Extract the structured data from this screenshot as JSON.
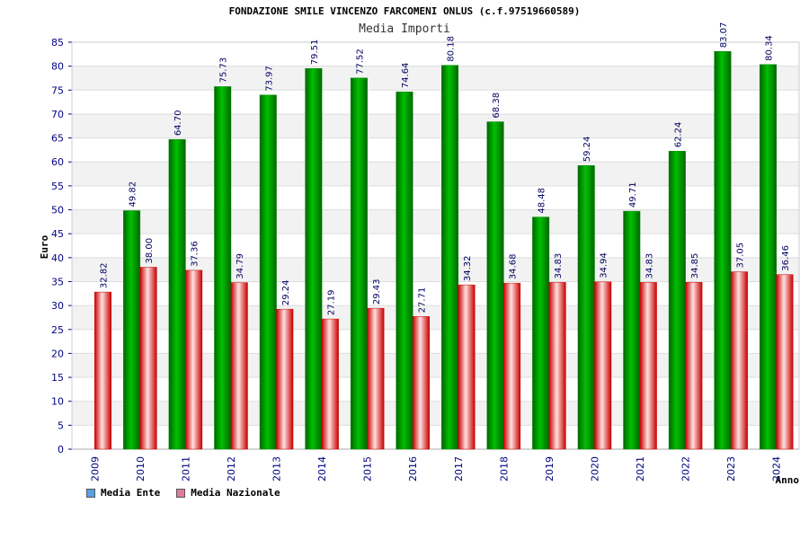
{
  "header": {
    "title": "FONDAZIONE SMILE VINCENZO FARCOMENI ONLUS (c.f.97519660589)",
    "subtitle": "Media Importi"
  },
  "legend": {
    "items": [
      {
        "label": "Media Ente",
        "color": "#5aa0e6"
      },
      {
        "label": "Media Nazionale",
        "color": "#e07aa0"
      }
    ]
  },
  "colors": {
    "ente_bar": "#00c000",
    "ente_bar_dark": "#006600",
    "nazionale_bar": "#ff3c3c",
    "nazionale_bar_dark": "#c80000",
    "axis_text": "#000080",
    "band": "#f2f2f2"
  },
  "chart_data": {
    "type": "bar",
    "title": "FONDAZIONE SMILE VINCENZO FARCOMENI ONLUS (c.f.97519660589)",
    "subtitle": "Media Importi",
    "xlabel": "Anno",
    "ylabel": "Euro",
    "ylim": [
      0,
      85
    ],
    "yticks": [
      0,
      5,
      10,
      15,
      20,
      25,
      30,
      35,
      40,
      45,
      50,
      55,
      60,
      65,
      70,
      75,
      80,
      85
    ],
    "grid": true,
    "legend_position": "bottom-left",
    "categories": [
      "2009",
      "2010",
      "2011",
      "2012",
      "2013",
      "2014",
      "2015",
      "2016",
      "2017",
      "2018",
      "2019",
      "2020",
      "2021",
      "2022",
      "2023",
      "2024"
    ],
    "series": [
      {
        "name": "Media Ente",
        "values": [
          null,
          49.82,
          64.7,
          75.73,
          73.97,
          79.51,
          77.52,
          74.64,
          80.18,
          68.38,
          48.48,
          59.24,
          49.71,
          62.24,
          83.07,
          80.34
        ],
        "labels": [
          "",
          "49.82",
          "64.70",
          "75.73",
          "73.97",
          "79.51",
          "77.52",
          "74.64",
          "80.18",
          "68.38",
          "48.48",
          "59.24",
          "49.71",
          "62.24",
          "83.07",
          "80.34"
        ]
      },
      {
        "name": "Media Nazionale",
        "values": [
          32.82,
          38.0,
          37.36,
          34.79,
          29.24,
          27.19,
          29.43,
          27.71,
          34.32,
          34.68,
          34.83,
          34.94,
          34.83,
          34.85,
          37.05,
          36.46
        ],
        "labels": [
          "32.82",
          "38.00",
          "37.36",
          "34.79",
          "29.24",
          "27.19",
          "29.43",
          "27.71",
          "34.32",
          "34.68",
          "34.83",
          "34.94",
          "34.83",
          "34.85",
          "37.05",
          "36.46"
        ]
      }
    ]
  }
}
